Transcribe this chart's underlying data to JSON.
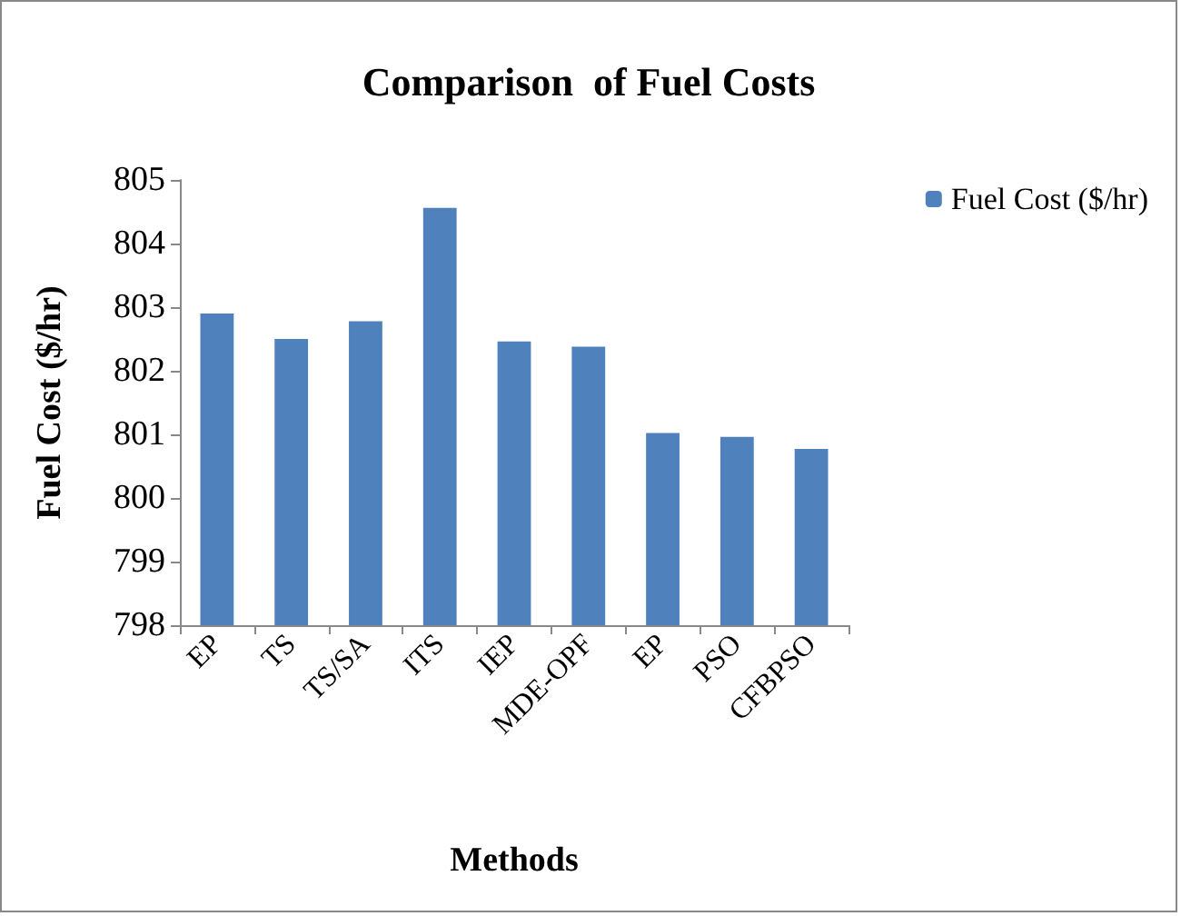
{
  "chart_data": {
    "type": "bar",
    "title": "Comparison  of Fuel Costs",
    "xlabel": "Methods",
    "ylabel": "Fuel Cost ($/hr)",
    "categories": [
      "EP",
      "TS",
      "TS/SA",
      "ITS",
      "IEP",
      "MDE-OPF",
      "EP",
      "PSO",
      "CFBPSO"
    ],
    "series": [
      {
        "name": "Fuel Cost ($/hr)",
        "color": "#4f81bd",
        "values": [
          802.9,
          802.5,
          802.78,
          804.56,
          802.46,
          802.38,
          801.02,
          800.96,
          800.77
        ]
      }
    ],
    "ylim": [
      798,
      805
    ],
    "yticks": [
      798,
      799,
      800,
      801,
      802,
      803,
      804,
      805
    ],
    "grid": false,
    "legend": "top right"
  }
}
